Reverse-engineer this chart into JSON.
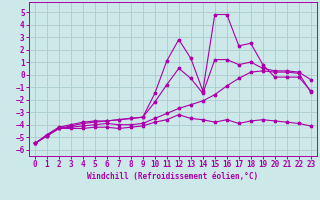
{
  "xlabel": "Windchill (Refroidissement éolien,°C)",
  "xlim": [
    -0.5,
    23.5
  ],
  "ylim": [
    -6.5,
    5.8
  ],
  "xticks": [
    0,
    1,
    2,
    3,
    4,
    5,
    6,
    7,
    8,
    9,
    10,
    11,
    12,
    13,
    14,
    15,
    16,
    17,
    18,
    19,
    20,
    21,
    22,
    23
  ],
  "yticks": [
    -6,
    -5,
    -4,
    -3,
    -2,
    -1,
    0,
    1,
    2,
    3,
    4,
    5
  ],
  "bg_color": "#cce8e8",
  "line_color": "#aa00aa",
  "grid_color": "#aacccc",
  "series": [
    [
      0,
      1,
      2,
      3,
      4,
      5,
      6,
      7,
      8,
      9,
      10,
      11,
      12,
      13,
      14,
      15,
      16,
      17,
      18,
      19,
      20,
      21,
      22,
      23
    ],
    [
      -5.5,
      -4.9,
      -4.3,
      -4.3,
      -4.3,
      -4.2,
      -4.2,
      -4.3,
      -4.2,
      -4.1,
      -3.8,
      -3.6,
      -3.2,
      -3.5,
      -3.6,
      -3.8,
      -3.6,
      -3.9,
      -3.7,
      -3.6,
      -3.7,
      -3.8,
      -3.9,
      -4.1
    ],
    [
      -5.5,
      -4.9,
      -4.3,
      -4.1,
      -3.9,
      -3.8,
      -3.7,
      -3.6,
      -3.5,
      -3.4,
      -1.5,
      1.1,
      2.8,
      1.3,
      -1.3,
      4.8,
      4.8,
      2.3,
      2.5,
      0.8,
      -0.2,
      -0.2,
      -0.2,
      -1.3
    ],
    [
      -5.5,
      -4.8,
      -4.2,
      -4.0,
      -3.8,
      -3.7,
      -3.7,
      -3.6,
      -3.5,
      -3.4,
      -2.2,
      -0.8,
      0.5,
      -0.3,
      -1.5,
      1.2,
      1.2,
      0.8,
      1.0,
      0.5,
      0.3,
      0.3,
      0.2,
      -0.4
    ],
    [
      -5.5,
      -4.9,
      -4.3,
      -4.2,
      -4.1,
      -4.0,
      -3.9,
      -4.0,
      -4.0,
      -3.9,
      -3.5,
      -3.1,
      -2.7,
      -2.4,
      -2.1,
      -1.6,
      -0.9,
      -0.3,
      0.2,
      0.3,
      0.2,
      0.2,
      0.1,
      -1.4
    ]
  ]
}
